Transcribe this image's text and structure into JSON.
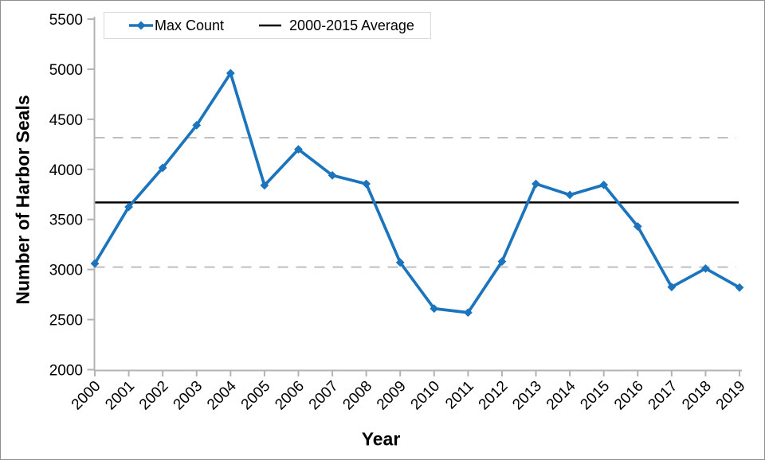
{
  "chart_data": {
    "type": "line",
    "title": "",
    "xlabel": "Year",
    "ylabel": "Number of Harbor Seals",
    "categories": [
      "2000",
      "2001",
      "2002",
      "2003",
      "2004",
      "2005",
      "2006",
      "2007",
      "2008",
      "2009",
      "2010",
      "2011",
      "2012",
      "2013",
      "2014",
      "2015",
      "2016",
      "2017",
      "2018",
      "2019"
    ],
    "series": [
      {
        "name": "Max Count",
        "color": "#1b74bc",
        "marker": "diamond",
        "values": [
          3060,
          3625,
          4015,
          4440,
          4960,
          3840,
          4200,
          3940,
          3855,
          3070,
          2610,
          2570,
          3080,
          3855,
          3745,
          3845,
          3430,
          2825,
          3010,
          2820
        ]
      },
      {
        "name": "2000-2015 Average",
        "color": "#000000",
        "style": "horizontal-line",
        "value": 3670
      }
    ],
    "dashed_reference_lines": {
      "upper": 4316,
      "lower": 3024,
      "color": "#bfbfbf",
      "style": "dashed"
    },
    "ylim": [
      2000,
      5500
    ],
    "y_ticks": [
      2000,
      2500,
      3000,
      3500,
      4000,
      4500,
      5000,
      5500
    ],
    "grid": false,
    "legend_position": "top-left",
    "axis_color": "#b3b3b3",
    "tick_label_color": "#000000"
  }
}
